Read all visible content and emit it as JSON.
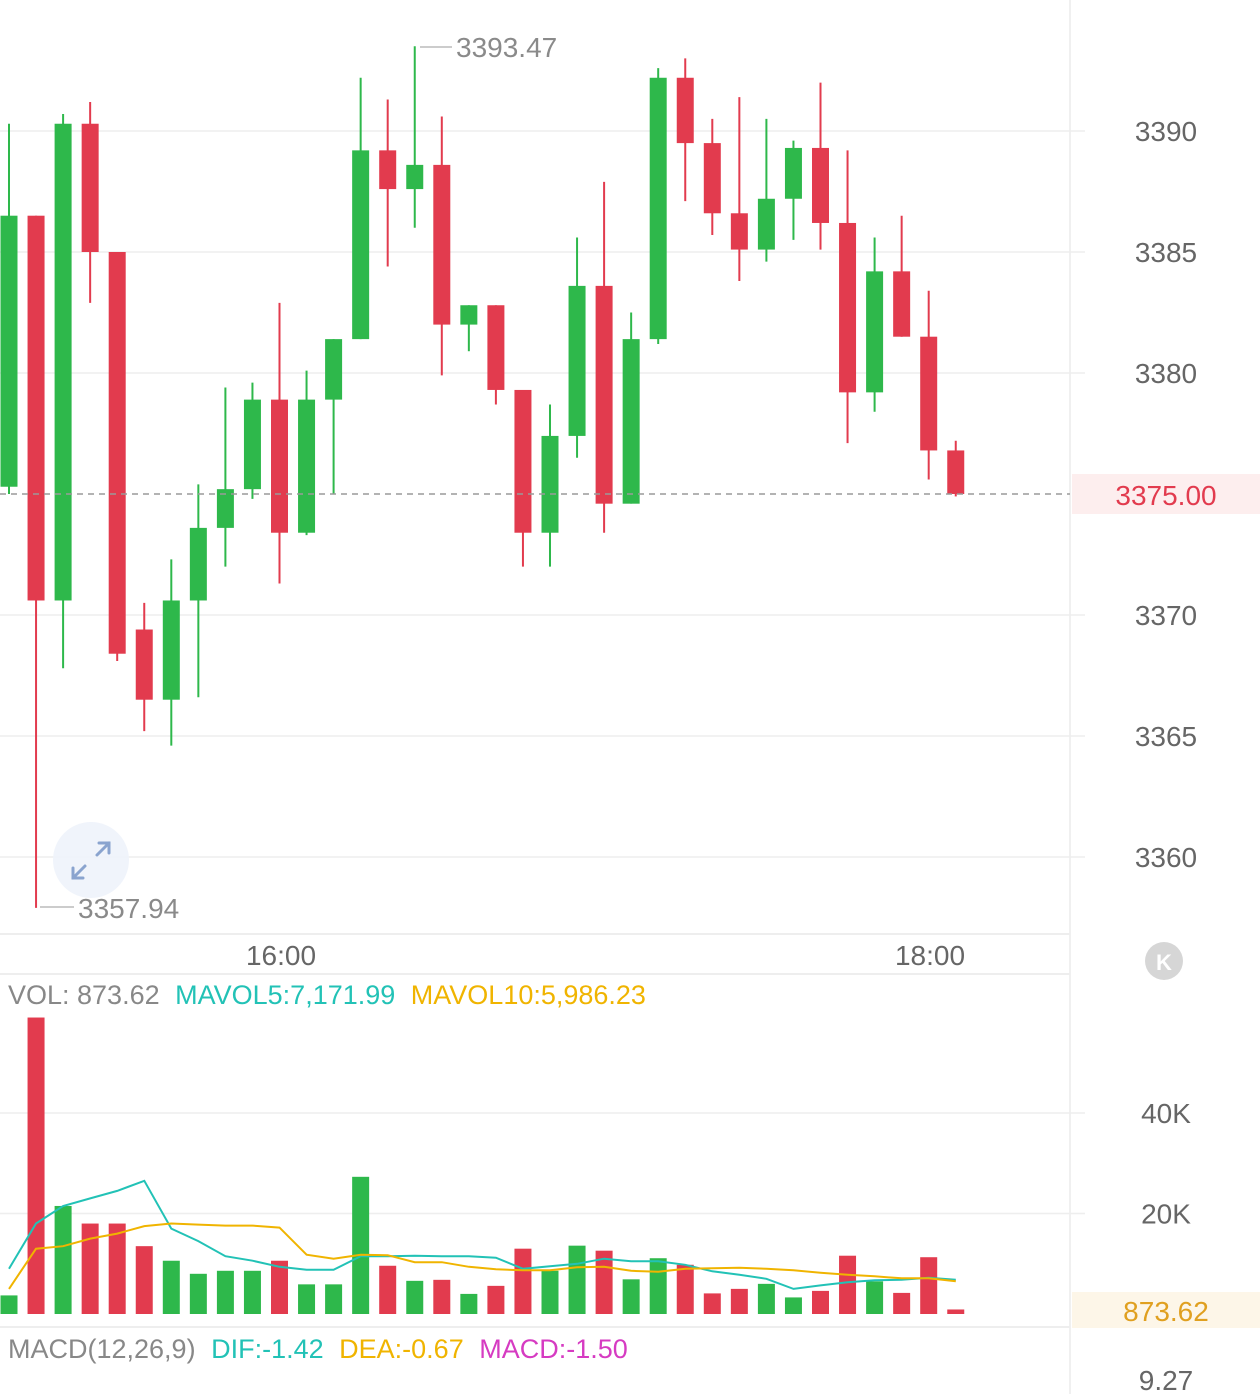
{
  "colors": {
    "up": "#2eb84b",
    "down": "#e23b4e",
    "mavol5": "#22c2b6",
    "mavol10": "#f0b400",
    "dif": "#22c2b6",
    "dea": "#f0b400",
    "macd": "#d63bc2",
    "axis_text": "#666666",
    "last_price": "#e23b4e",
    "last_volume": "#e0a020",
    "grid": "#eeeeee"
  },
  "chart_data": [
    {
      "type": "candlestick",
      "title": "",
      "x_ticks": [
        "16:00",
        "18:00"
      ],
      "y_ticks": [
        "3390",
        "3385",
        "3380",
        "3375.00",
        "3370",
        "3365",
        "3360"
      ],
      "ylim": [
        3356.5,
        3396.5
      ],
      "current_price": 3375.0,
      "current_price_label": "3375.00",
      "annotations": {
        "high": "3393.47",
        "low": "3357.94"
      },
      "candles": [
        {
          "o": 3375.3,
          "c": 3386.5,
          "h": 3390.3,
          "l": 3375.0
        },
        {
          "o": 3386.5,
          "c": 3370.6,
          "h": 3386.5,
          "l": 3357.9
        },
        {
          "o": 3370.6,
          "c": 3390.3,
          "h": 3390.7,
          "l": 3367.8
        },
        {
          "o": 3390.3,
          "c": 3385.0,
          "h": 3391.2,
          "l": 3382.9
        },
        {
          "o": 3385.0,
          "c": 3368.4,
          "h": 3385.0,
          "l": 3368.1
        },
        {
          "o": 3369.4,
          "c": 3366.5,
          "h": 3370.5,
          "l": 3365.2
        },
        {
          "o": 3366.5,
          "c": 3370.6,
          "h": 3372.3,
          "l": 3364.6
        },
        {
          "o": 3370.6,
          "c": 3373.6,
          "h": 3375.4,
          "l": 3366.6
        },
        {
          "o": 3373.6,
          "c": 3375.2,
          "h": 3379.4,
          "l": 3372.0
        },
        {
          "o": 3375.2,
          "c": 3378.9,
          "h": 3379.6,
          "l": 3374.8
        },
        {
          "o": 3378.9,
          "c": 3373.4,
          "h": 3382.9,
          "l": 3371.3
        },
        {
          "o": 3373.4,
          "c": 3378.9,
          "h": 3380.1,
          "l": 3373.3
        },
        {
          "o": 3378.9,
          "c": 3381.4,
          "h": 3381.4,
          "l": 3375.0
        },
        {
          "o": 3381.4,
          "c": 3389.2,
          "h": 3392.2,
          "l": 3381.4
        },
        {
          "o": 3389.2,
          "c": 3387.6,
          "h": 3391.3,
          "l": 3384.4
        },
        {
          "o": 3387.6,
          "c": 3388.6,
          "h": 3393.5,
          "l": 3386.0
        },
        {
          "o": 3388.6,
          "c": 3382.0,
          "h": 3390.6,
          "l": 3379.9
        },
        {
          "o": 3382.0,
          "c": 3382.8,
          "h": 3382.8,
          "l": 3380.9
        },
        {
          "o": 3382.8,
          "c": 3379.3,
          "h": 3382.8,
          "l": 3378.7
        },
        {
          "o": 3379.3,
          "c": 3373.4,
          "h": 3379.3,
          "l": 3372.0
        },
        {
          "o": 3373.4,
          "c": 3377.4,
          "h": 3378.7,
          "l": 3372.0
        },
        {
          "o": 3377.4,
          "c": 3383.6,
          "h": 3385.6,
          "l": 3376.5
        },
        {
          "o": 3383.6,
          "c": 3374.6,
          "h": 3387.9,
          "l": 3373.4
        },
        {
          "o": 3374.6,
          "c": 3381.4,
          "h": 3382.5,
          "l": 3374.6
        },
        {
          "o": 3381.4,
          "c": 3392.2,
          "h": 3392.6,
          "l": 3381.2
        },
        {
          "o": 3392.2,
          "c": 3389.5,
          "h": 3393.0,
          "l": 3387.1
        },
        {
          "o": 3389.5,
          "c": 3386.6,
          "h": 3390.5,
          "l": 3385.7
        },
        {
          "o": 3386.6,
          "c": 3385.1,
          "h": 3391.4,
          "l": 3383.8
        },
        {
          "o": 3385.1,
          "c": 3387.2,
          "h": 3390.5,
          "l": 3384.6
        },
        {
          "o": 3387.2,
          "c": 3389.3,
          "h": 3389.6,
          "l": 3385.5
        },
        {
          "o": 3389.3,
          "c": 3386.2,
          "h": 3392.0,
          "l": 3385.1
        },
        {
          "o": 3386.2,
          "c": 3379.2,
          "h": 3389.2,
          "l": 3377.1
        },
        {
          "o": 3379.2,
          "c": 3384.2,
          "h": 3385.6,
          "l": 3378.4
        },
        {
          "o": 3384.2,
          "c": 3381.5,
          "h": 3386.5,
          "l": 3381.5
        },
        {
          "o": 3381.5,
          "c": 3376.8,
          "h": 3383.4,
          "l": 3375.6
        },
        {
          "o": 3376.8,
          "c": 3375.0,
          "h": 3377.2,
          "l": 3374.9
        }
      ]
    },
    {
      "type": "bar",
      "title": "VOL",
      "header": {
        "vol": "VOL: 873.62",
        "mavol5": "MAVOL5:7,171.99",
        "mavol10": "MAVOL10:5,986.23"
      },
      "y_ticks": [
        "40K",
        "20K"
      ],
      "ylim": [
        0,
        60000
      ],
      "current_volume_label": "873.62",
      "volumes": [
        3700,
        59000,
        21500,
        18000,
        18000,
        13500,
        10600,
        8000,
        8600,
        8600,
        10600,
        5900,
        5900,
        27300,
        9600,
        6600,
        6800,
        4000,
        5600,
        13000,
        8600,
        13600,
        12600,
        6900,
        11100,
        9800,
        4100,
        5000,
        6000,
        3300,
        4600,
        11600,
        6500,
        4200,
        11300,
        900
      ],
      "series": [
        {
          "name": "MAVOL5",
          "values": [
            9000,
            18000,
            21500,
            23000,
            24500,
            26500,
            17000,
            14500,
            11500,
            10600,
            9400,
            8800,
            8800,
            11500,
            11500,
            11600,
            11500,
            11500,
            11200,
            9000,
            9500,
            10000,
            11000,
            10500,
            10500,
            9800,
            8500,
            7800,
            7000,
            5000,
            5700,
            6300,
            6700,
            6800,
            7200,
            6800
          ]
        },
        {
          "name": "MAVOL10",
          "values": [
            5000,
            13000,
            13500,
            15000,
            16000,
            17500,
            18000,
            17800,
            17600,
            17600,
            17200,
            11800,
            11000,
            11800,
            11700,
            10300,
            10300,
            9400,
            8900,
            8700,
            8700,
            9300,
            9400,
            8600,
            8400,
            9000,
            9100,
            9200,
            9000,
            8700,
            8200,
            7800,
            7500,
            7100,
            7100,
            6500
          ]
        }
      ]
    },
    {
      "type": "line",
      "title": "MACD(12,26,9)",
      "header": {
        "title": "MACD(12,26,9)",
        "dif": "DIF:-1.42",
        "dea": "DEA:-0.67",
        "macd": "MACD:-1.50"
      },
      "y_ticks": [
        "9.27"
      ]
    }
  ]
}
